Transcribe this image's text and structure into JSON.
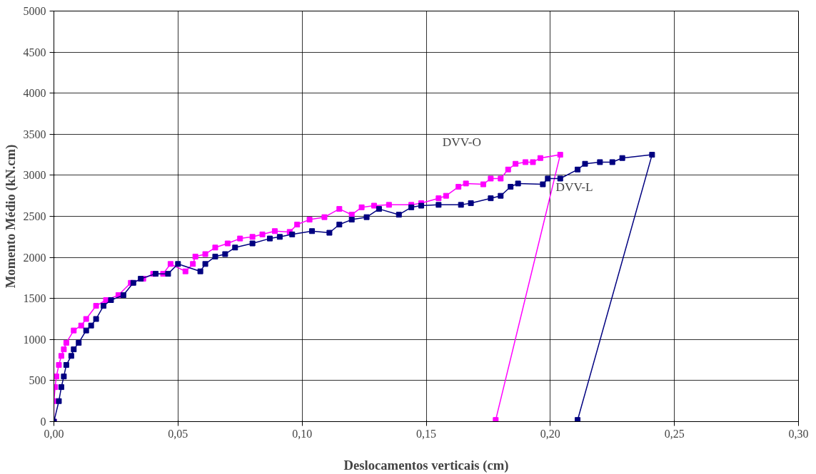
{
  "chart_data": {
    "type": "line",
    "xlabel": "Deslocamentos verticais (cm)",
    "ylabel": "Momento Médio (kN.cm)",
    "xlim": [
      0,
      0.3
    ],
    "ylim": [
      0,
      5000
    ],
    "xticks": [
      {
        "value": 0,
        "label": "0,00"
      },
      {
        "value": 0.05,
        "label": "0,05"
      },
      {
        "value": 0.1,
        "label": "0,10"
      },
      {
        "value": 0.15,
        "label": "0,15"
      },
      {
        "value": 0.2,
        "label": "0,20"
      },
      {
        "value": 0.25,
        "label": "0,25"
      },
      {
        "value": 0.3,
        "label": "0,30"
      }
    ],
    "yticks": [
      0,
      500,
      1000,
      1500,
      2000,
      2500,
      3000,
      3500,
      4000,
      4500,
      5000
    ],
    "grid": true,
    "marker": "square",
    "line_style": "solid",
    "series": [
      {
        "name": "DVV-O",
        "color": "#ff00ff",
        "x": [
          0,
          0,
          0.0005,
          0.001,
          0.002,
          0.003,
          0.004,
          0.005,
          0.008,
          0.011,
          0.013,
          0.017,
          0.021,
          0.026,
          0.031,
          0.036,
          0.04,
          0.044,
          0.047,
          0.053,
          0.056,
          0.057,
          0.061,
          0.065,
          0.07,
          0.075,
          0.08,
          0.084,
          0.089,
          0.095,
          0.098,
          0.103,
          0.109,
          0.115,
          0.12,
          0.124,
          0.129,
          0.135,
          0.144,
          0.148,
          0.155,
          0.158,
          0.163,
          0.166,
          0.173,
          0.176,
          0.18,
          0.183,
          0.186,
          0.19,
          0.193,
          0.196,
          0.204,
          0.178
        ],
        "values": [
          0,
          250,
          420,
          550,
          690,
          800,
          880,
          960,
          1110,
          1170,
          1250,
          1410,
          1480,
          1540,
          1690,
          1740,
          1800,
          1800,
          1920,
          1830,
          1920,
          2010,
          2040,
          2120,
          2170,
          2230,
          2250,
          2280,
          2320,
          2310,
          2400,
          2460,
          2490,
          2590,
          2520,
          2610,
          2630,
          2640,
          2640,
          2660,
          2720,
          2750,
          2860,
          2900,
          2890,
          2960,
          2960,
          3070,
          3140,
          3160,
          3160,
          3210,
          3250,
          20
        ]
      },
      {
        "name": "DVV-L",
        "color": "#000080",
        "x": [
          0,
          0.002,
          0.003,
          0.004,
          0.005,
          0.007,
          0.008,
          0.01,
          0.013,
          0.015,
          0.017,
          0.02,
          0.023,
          0.028,
          0.032,
          0.035,
          0.041,
          0.046,
          0.05,
          0.059,
          0.061,
          0.065,
          0.069,
          0.073,
          0.08,
          0.087,
          0.091,
          0.096,
          0.104,
          0.111,
          0.115,
          0.12,
          0.126,
          0.131,
          0.139,
          0.144,
          0.148,
          0.155,
          0.164,
          0.168,
          0.176,
          0.18,
          0.184,
          0.187,
          0.197,
          0.199,
          0.204,
          0.211,
          0.214,
          0.22,
          0.225,
          0.229,
          0.241,
          0.211
        ],
        "values": [
          0,
          250,
          420,
          550,
          690,
          800,
          880,
          960,
          1110,
          1170,
          1250,
          1410,
          1480,
          1540,
          1690,
          1740,
          1800,
          1800,
          1920,
          1830,
          1920,
          2010,
          2040,
          2120,
          2170,
          2230,
          2250,
          2280,
          2320,
          2300,
          2400,
          2460,
          2490,
          2590,
          2520,
          2610,
          2630,
          2640,
          2640,
          2660,
          2720,
          2750,
          2860,
          2900,
          2890,
          2960,
          2960,
          3070,
          3140,
          3160,
          3160,
          3210,
          3250,
          20
        ]
      }
    ]
  }
}
